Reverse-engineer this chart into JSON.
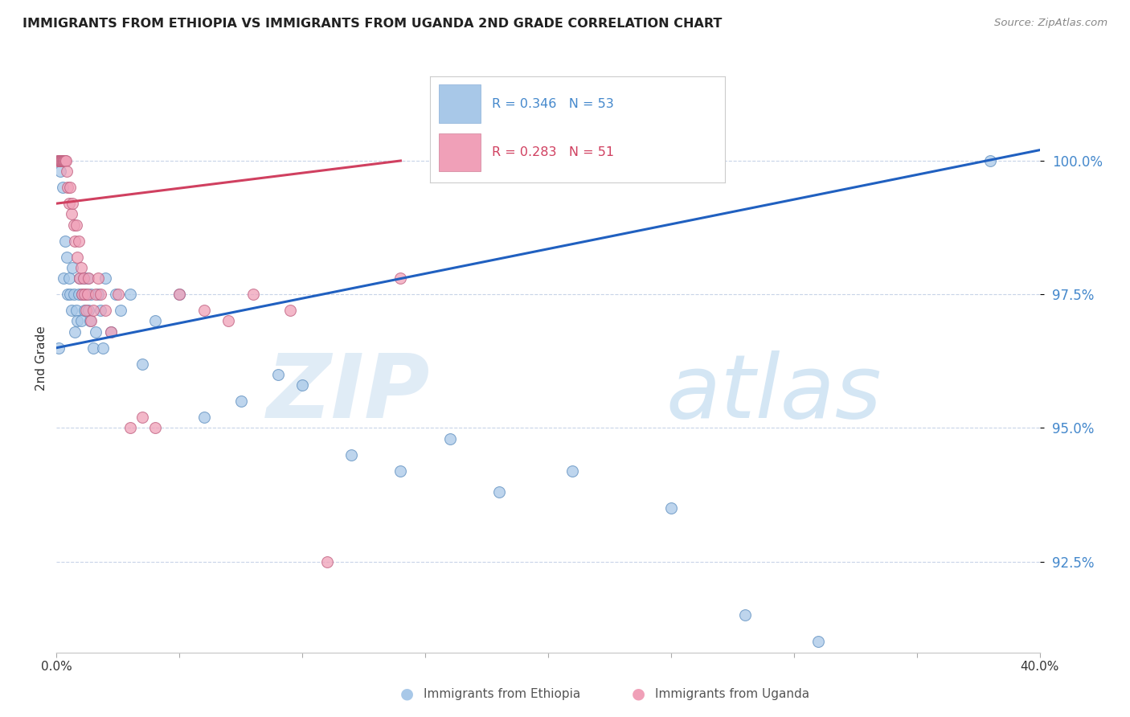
{
  "title": "IMMIGRANTS FROM ETHIOPIA VS IMMIGRANTS FROM UGANDA 2ND GRADE CORRELATION CHART",
  "source": "Source: ZipAtlas.com",
  "ylabel": "2nd Grade",
  "legend_label1": "Immigrants from Ethiopia",
  "legend_label2": "Immigrants from Uganda",
  "r1": 0.346,
  "n1": 53,
  "r2": 0.283,
  "n2": 51,
  "color_ethiopia": "#a8c8e8",
  "color_uganda": "#f0a0b8",
  "line_color_ethiopia": "#2060c0",
  "line_color_uganda": "#d04060",
  "x_min": 0.0,
  "x_max": 40.0,
  "y_min": 90.8,
  "y_max": 101.8,
  "y_ticks": [
    92.5,
    95.0,
    97.5,
    100.0
  ],
  "background_color": "#ffffff",
  "grid_color": "#c8d4e8",
  "watermark_zip": "ZIP",
  "watermark_atlas": "atlas",
  "title_fontsize": 11.5,
  "axis_label_color": "#4488cc",
  "tick_color": "#4488cc",
  "ethiopia_x": [
    0.1,
    0.15,
    0.2,
    0.25,
    0.3,
    0.35,
    0.4,
    0.45,
    0.5,
    0.55,
    0.6,
    0.65,
    0.7,
    0.75,
    0.8,
    0.85,
    0.9,
    0.95,
    1.0,
    1.05,
    1.1,
    1.15,
    1.2,
    1.25,
    1.3,
    1.35,
    1.4,
    1.5,
    1.6,
    1.7,
    1.8,
    1.9,
    2.0,
    2.2,
    2.4,
    2.6,
    3.0,
    3.5,
    4.0,
    5.0,
    6.0,
    7.5,
    9.0,
    10.0,
    12.0,
    14.0,
    16.0,
    18.0,
    21.0,
    25.0,
    28.0,
    31.0,
    38.0
  ],
  "ethiopia_y": [
    96.5,
    99.8,
    100.0,
    99.5,
    97.8,
    98.5,
    98.2,
    97.5,
    97.8,
    97.5,
    97.2,
    98.0,
    97.5,
    96.8,
    97.2,
    97.0,
    97.5,
    97.8,
    97.0,
    97.5,
    97.8,
    97.2,
    97.5,
    97.8,
    97.2,
    97.0,
    97.5,
    96.5,
    96.8,
    97.5,
    97.2,
    96.5,
    97.8,
    96.8,
    97.5,
    97.2,
    97.5,
    96.2,
    97.0,
    97.5,
    95.2,
    95.5,
    96.0,
    95.8,
    94.5,
    94.2,
    94.8,
    93.8,
    94.2,
    93.5,
    91.5,
    91.0,
    100.0
  ],
  "uganda_x": [
    0.05,
    0.08,
    0.1,
    0.12,
    0.15,
    0.18,
    0.2,
    0.22,
    0.25,
    0.28,
    0.3,
    0.32,
    0.35,
    0.38,
    0.4,
    0.45,
    0.5,
    0.55,
    0.6,
    0.65,
    0.7,
    0.75,
    0.8,
    0.85,
    0.9,
    0.95,
    1.0,
    1.05,
    1.1,
    1.15,
    1.2,
    1.25,
    1.3,
    1.4,
    1.5,
    1.6,
    1.7,
    1.8,
    2.0,
    2.2,
    2.5,
    3.0,
    3.5,
    4.0,
    5.0,
    6.0,
    7.0,
    8.0,
    9.5,
    11.0,
    14.0
  ],
  "uganda_y": [
    100.0,
    100.0,
    100.0,
    100.0,
    100.0,
    100.0,
    100.0,
    100.0,
    100.0,
    100.0,
    100.0,
    100.0,
    100.0,
    100.0,
    99.8,
    99.5,
    99.2,
    99.5,
    99.0,
    99.2,
    98.8,
    98.5,
    98.8,
    98.2,
    98.5,
    97.8,
    98.0,
    97.5,
    97.8,
    97.5,
    97.2,
    97.5,
    97.8,
    97.0,
    97.2,
    97.5,
    97.8,
    97.5,
    97.2,
    96.8,
    97.5,
    95.0,
    95.2,
    95.0,
    97.5,
    97.2,
    97.0,
    97.5,
    97.2,
    92.5,
    97.8
  ],
  "blue_line_x0": 0.0,
  "blue_line_y0": 96.5,
  "blue_line_x1": 40.0,
  "blue_line_y1": 100.2,
  "pink_line_x0": 0.0,
  "pink_line_y0": 99.2,
  "pink_line_x1": 14.0,
  "pink_line_y1": 100.0
}
